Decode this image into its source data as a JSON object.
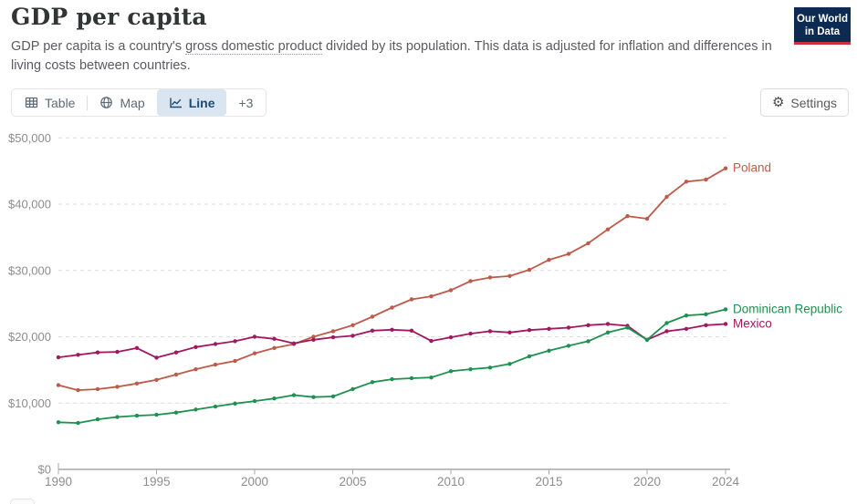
{
  "header": {
    "title": "GDP per capita",
    "subtitle_part1": "GDP per capita is a country's ",
    "subtitle_linked_term": "gross domestic product",
    "subtitle_part2": " divided by its population. This data is adjusted for inflation and differences in living costs between countries.",
    "logo": {
      "line1": "Our World",
      "line2": "in Data",
      "bg_color": "#0d2b52",
      "accent_color": "#d02d3d"
    }
  },
  "toolbar": {
    "tabs": [
      {
        "label": "Table",
        "icon": "table-icon",
        "active": false
      },
      {
        "label": "Map",
        "icon": "globe-icon",
        "active": false
      },
      {
        "label": "Line",
        "icon": "line-chart-icon",
        "active": true
      },
      {
        "label": "+3",
        "icon": null,
        "active": false
      }
    ],
    "settings_label": "Settings",
    "active_tab_bg": "#d9e5f0",
    "active_tab_text": "#1f4b70"
  },
  "chart_data": {
    "type": "line",
    "title": "GDP per capita",
    "xlabel": "",
    "ylabel": "",
    "ylim": [
      0,
      50000
    ],
    "yticks": [
      0,
      10000,
      20000,
      30000,
      40000,
      50000
    ],
    "ytick_format": "$#,###",
    "xticks": [
      1990,
      1995,
      2000,
      2005,
      2010,
      2015,
      2020,
      2024
    ],
    "grid": "dashed-horizontal",
    "legend_position": "line-end-labels",
    "x": [
      1990,
      1991,
      1992,
      1993,
      1994,
      1995,
      1996,
      1997,
      1998,
      1999,
      2000,
      2001,
      2002,
      2003,
      2004,
      2005,
      2006,
      2007,
      2008,
      2009,
      2010,
      2011,
      2012,
      2013,
      2014,
      2015,
      2016,
      2017,
      2018,
      2019,
      2020,
      2021,
      2022,
      2023,
      2024
    ],
    "series": [
      {
        "name": "Poland",
        "color": "#be5a49",
        "values": [
          12700,
          11950,
          12100,
          12450,
          12950,
          13500,
          14300,
          15100,
          15800,
          16350,
          17500,
          18300,
          18900,
          20000,
          20840,
          21740,
          23030,
          24400,
          25640,
          26100,
          27020,
          28390,
          28940,
          29160,
          30100,
          31600,
          32500,
          34100,
          36200,
          38200,
          37800,
          41100,
          43400,
          43700,
          45400
        ]
      },
      {
        "name": "Mexico",
        "color": "#a21760",
        "values": [
          16900,
          17270,
          17630,
          17720,
          18300,
          16850,
          17630,
          18450,
          18900,
          19330,
          20000,
          19690,
          19000,
          19550,
          19920,
          20150,
          20920,
          21060,
          20920,
          19370,
          19920,
          20470,
          20840,
          20650,
          21000,
          21200,
          21380,
          21750,
          21930,
          21650,
          19550,
          20830,
          21200,
          21750,
          21930
        ]
      },
      {
        "name": "Dominican Republic",
        "color": "#1d9150",
        "values": [
          7100,
          7000,
          7550,
          7900,
          8100,
          8240,
          8560,
          9020,
          9480,
          9930,
          10300,
          10700,
          11200,
          10900,
          11000,
          12100,
          13150,
          13600,
          13750,
          13850,
          14800,
          15100,
          15350,
          15900,
          17050,
          17900,
          18640,
          19320,
          20650,
          21380,
          19550,
          22070,
          23210,
          23390,
          24130
        ]
      }
    ],
    "axis_color": "#a8a8a8",
    "grid_color": "#dcdcdc",
    "tick_label_color": "#8d8d8d"
  }
}
